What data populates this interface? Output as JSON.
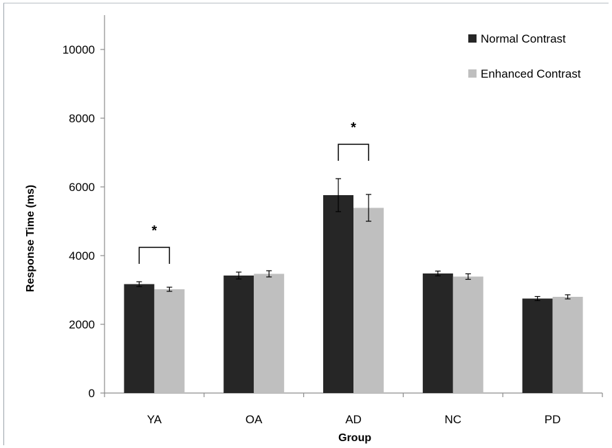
{
  "chart_data": {
    "type": "bar",
    "title": "",
    "xlabel": "Group",
    "ylabel": "Response Time (ms)",
    "ylim": [
      0,
      11000
    ],
    "yticks": [
      0,
      2000,
      4000,
      6000,
      8000,
      10000
    ],
    "grid": false,
    "legend_position": "top-right",
    "categories": [
      "YA",
      "OA",
      "AD",
      "NC",
      "PD"
    ],
    "series": [
      {
        "name": "Normal Contrast",
        "color": "#262626",
        "values": [
          3170,
          3420,
          5760,
          3480,
          2750
        ],
        "errors": [
          70,
          100,
          480,
          70,
          60
        ]
      },
      {
        "name": "Enhanced Contrast",
        "color": "#bfbfbf",
        "values": [
          3020,
          3470,
          5390,
          3390,
          2800
        ],
        "errors": [
          60,
          90,
          390,
          80,
          60
        ]
      }
    ],
    "significance": [
      {
        "category": "YA",
        "label": "*"
      },
      {
        "category": "AD",
        "label": "*"
      }
    ]
  }
}
